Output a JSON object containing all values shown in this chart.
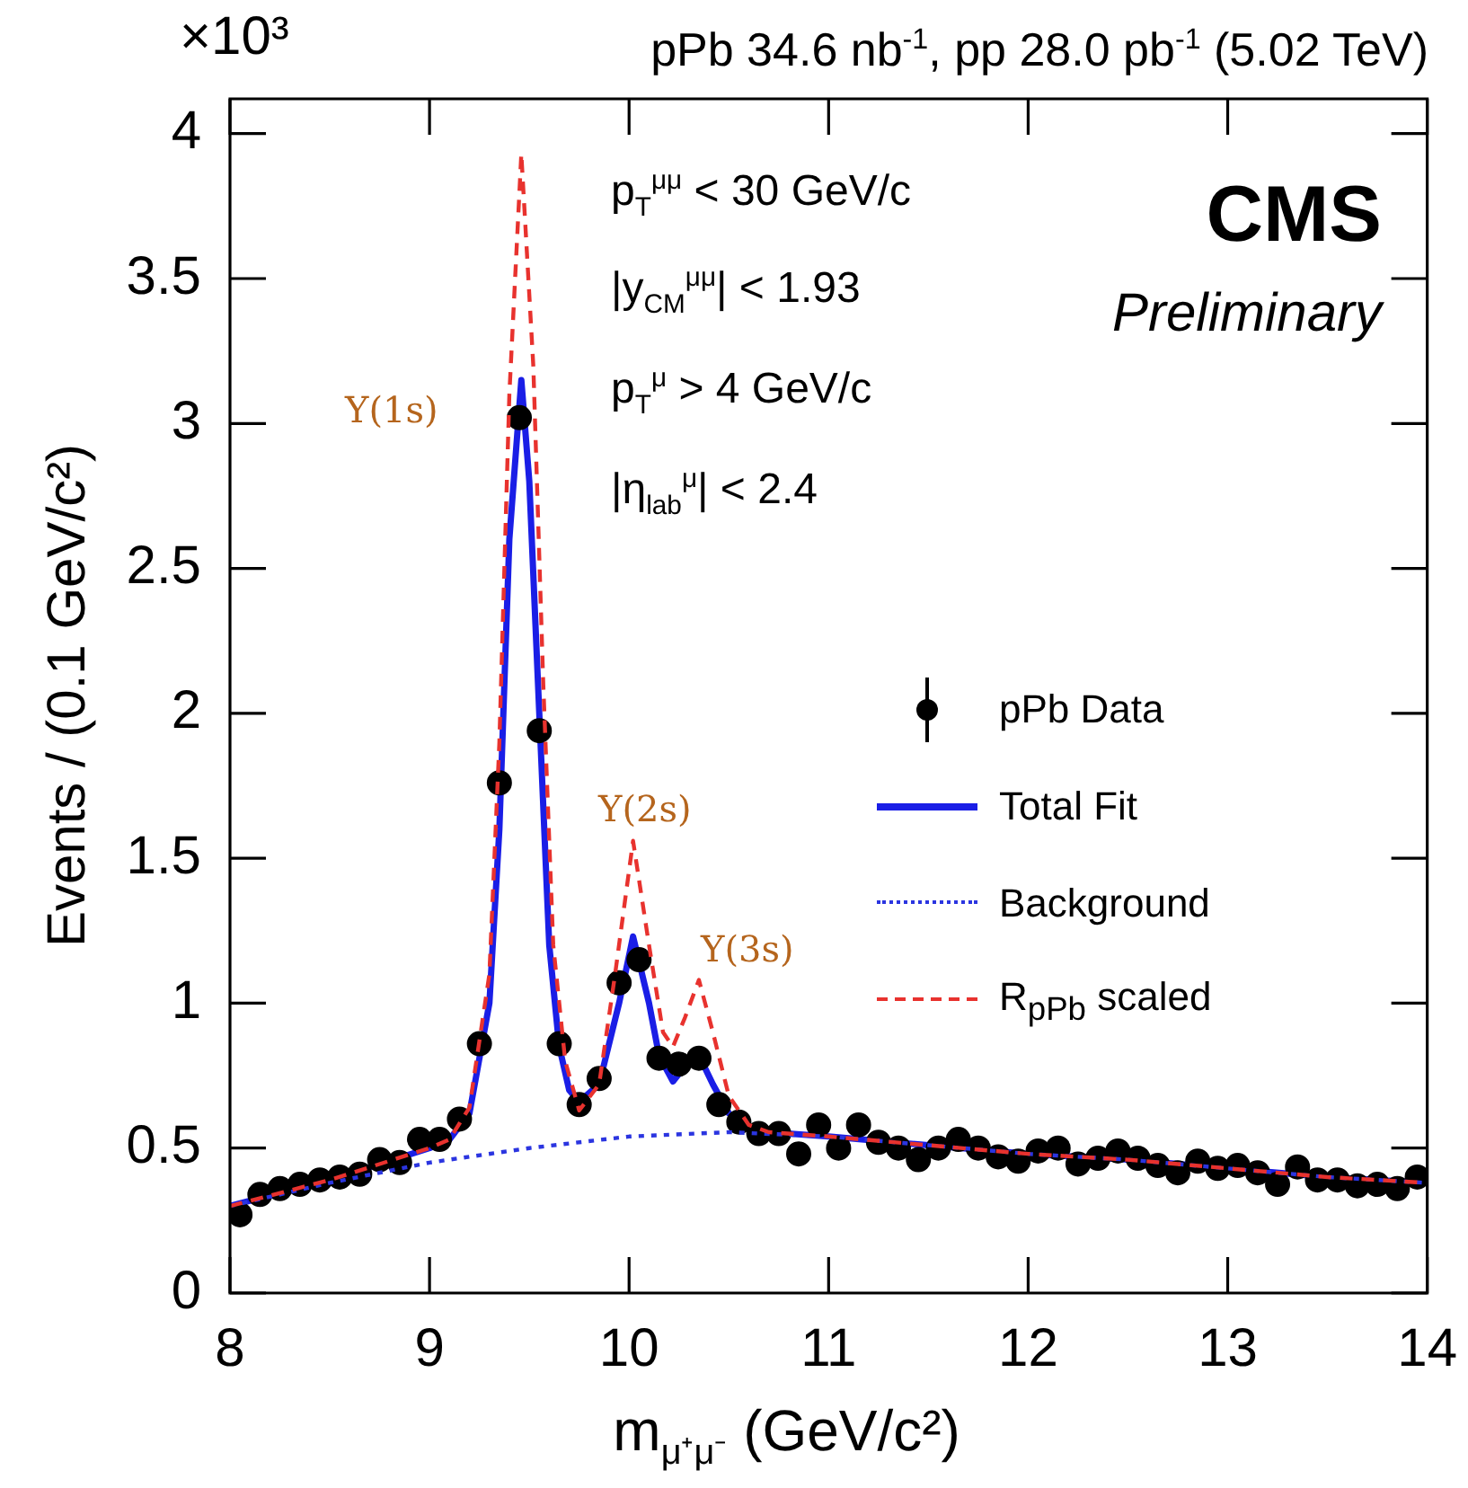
{
  "chart_data": {
    "type": "scatter",
    "title": "pPb 34.6 nb$^{-1}$, pp 28.0 pb$^{-1}$ (5.02 TeV)",
    "xlabel": "m$_{μ⁺μ⁻}$ (GeV/c²)",
    "ylabel": "Events / (0.1 GeV/c²)",
    "annotations": [
      "×10³",
      "p$_{T}$$^{μμ}$ < 30 GeV/c",
      "|y$_{CM}$$^{μμ}$| < 1.93",
      "p$_{T}$$^{μ}$ > 4 GeV/c",
      "|η$_{lab}$$^{μ}$| < 2.4",
      "CMS",
      "Preliminary",
      "Υ(1s)",
      "Υ(2s)",
      "Υ(3s)"
    ],
    "series": [
      {
        "name": "R$_{pPb}$ scaled",
        "type": "line",
        "color": "#e8322e",
        "line_style": "dashed",
        "marker": "none",
        "x": [
          8,
          8.5,
          9,
          9.1,
          9.2,
          9.3,
          9.35,
          9.4,
          9.46,
          9.52,
          9.57,
          9.62,
          9.68,
          9.75,
          9.85,
          9.93,
          10.02,
          10.1,
          10.17,
          10.22,
          10.28,
          10.35,
          10.42,
          10.5,
          10.6,
          10.7,
          11,
          11.5,
          12,
          12.5,
          13,
          13.5,
          14
        ],
        "values": [
          0.3,
          0.39,
          0.5,
          0.53,
          0.64,
          1.1,
          1.9,
          3.1,
          3.93,
          3.2,
          2.1,
          1.2,
          0.8,
          0.63,
          0.72,
          1.1,
          1.56,
          1.2,
          0.9,
          0.85,
          0.95,
          1.08,
          0.9,
          0.68,
          0.58,
          0.555,
          0.54,
          0.51,
          0.48,
          0.46,
          0.43,
          0.4,
          0.38
        ]
      },
      {
        "name": "Background",
        "type": "line",
        "color": "#2b35e0",
        "line_style": "dotted",
        "marker": "none",
        "x": [
          8,
          8.5,
          9,
          9.5,
          10,
          10.5,
          11,
          11.5,
          12,
          12.5,
          13,
          13.5,
          14
        ],
        "values": [
          0.3,
          0.38,
          0.45,
          0.5,
          0.54,
          0.555,
          0.54,
          0.51,
          0.48,
          0.46,
          0.43,
          0.4,
          0.38
        ]
      },
      {
        "name": "pPb Data",
        "type": "scatter",
        "color": "#000000",
        "marker": "circle",
        "x": [
          8.05,
          8.15,
          8.25,
          8.35,
          8.45,
          8.55,
          8.65,
          8.75,
          8.85,
          8.95,
          9.05,
          9.15,
          9.25,
          9.35,
          9.45,
          9.55,
          9.65,
          9.75,
          9.85,
          9.95,
          10.05,
          10.15,
          10.25,
          10.35,
          10.45,
          10.55,
          10.65,
          10.75,
          10.85,
          10.95,
          11.05,
          11.15,
          11.25,
          11.35,
          11.45,
          11.55,
          11.65,
          11.75,
          11.85,
          11.95,
          12.05,
          12.15,
          12.25,
          12.35,
          12.45,
          12.55,
          12.65,
          12.75,
          12.85,
          12.95,
          13.05,
          13.15,
          13.25,
          13.35,
          13.45,
          13.55,
          13.65,
          13.75,
          13.85,
          13.95
        ],
        "values": [
          0.27,
          0.34,
          0.36,
          0.375,
          0.39,
          0.4,
          0.41,
          0.46,
          0.45,
          0.53,
          0.53,
          0.6,
          0.86,
          1.76,
          3.02,
          1.94,
          0.86,
          0.65,
          0.74,
          1.07,
          1.15,
          0.81,
          0.79,
          0.81,
          0.65,
          0.59,
          0.55,
          0.55,
          0.48,
          0.58,
          0.5,
          0.58,
          0.52,
          0.5,
          0.46,
          0.5,
          0.53,
          0.5,
          0.47,
          0.455,
          0.49,
          0.5,
          0.445,
          0.465,
          0.49,
          0.465,
          0.44,
          0.415,
          0.455,
          0.43,
          0.44,
          0.415,
          0.375,
          0.435,
          0.39,
          0.39,
          0.37,
          0.375,
          0.36,
          0.4
        ]
      },
      {
        "name": "Total Fit",
        "type": "line",
        "color": "#1a1ee6",
        "line_style": "solid",
        "marker": "none",
        "x": [
          8,
          8.5,
          9,
          9.1,
          9.2,
          9.3,
          9.35,
          9.4,
          9.46,
          9.5,
          9.55,
          9.6,
          9.65,
          9.7,
          9.75,
          9.85,
          9.95,
          10.02,
          10.1,
          10.15,
          10.22,
          10.3,
          10.35,
          10.42,
          10.5,
          10.6,
          10.7,
          11,
          11.5,
          12,
          12.5,
          13,
          13.5,
          14
        ],
        "values": [
          0.3,
          0.39,
          0.5,
          0.53,
          0.62,
          1.0,
          1.6,
          2.6,
          3.15,
          2.8,
          2.0,
          1.2,
          0.85,
          0.7,
          0.66,
          0.72,
          1.0,
          1.23,
          1.0,
          0.82,
          0.73,
          0.8,
          0.82,
          0.72,
          0.62,
          0.57,
          0.555,
          0.54,
          0.51,
          0.48,
          0.46,
          0.43,
          0.4,
          0.38
        ]
      }
    ],
    "xlim": [
      8,
      14
    ],
    "ylim": [
      0,
      4.12
    ],
    "xticks": [
      8,
      9,
      10,
      11,
      12,
      13,
      14
    ],
    "yticks": [
      0,
      0.5,
      1,
      1.5,
      2,
      2.5,
      3,
      3.5,
      4
    ],
    "grid": false,
    "legend": "right"
  }
}
